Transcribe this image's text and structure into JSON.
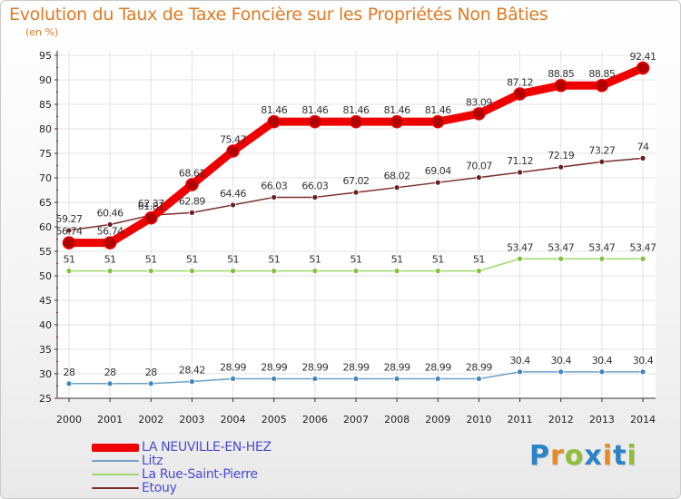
{
  "title": "Evolution du Taux de Taxe Foncière sur les Propriétés Non Bâties",
  "unit_label": "(en %)",
  "logo": {
    "letters": [
      "P",
      "r",
      "o",
      "x",
      "i",
      "t",
      "i"
    ],
    "colors": [
      "#2b84c6",
      "#e6892a",
      "#8fbf3a",
      "#2b84c6",
      "#e6892a",
      "#2b84c6",
      "#8fbf3a"
    ]
  },
  "chart_data": {
    "type": "line",
    "x": [
      "2000",
      "2001",
      "2002",
      "2003",
      "2004",
      "2005",
      "2006",
      "2007",
      "2008",
      "2009",
      "2010",
      "2011",
      "2012",
      "2013",
      "2014"
    ],
    "ylim": [
      25,
      95
    ],
    "yticks": [
      25,
      30,
      35,
      40,
      45,
      50,
      55,
      60,
      65,
      70,
      75,
      80,
      85,
      90,
      95
    ],
    "grid": true,
    "legend_position": "bottom-left",
    "series": [
      {
        "name": "LA NEUVILLE-EN-HEZ",
        "color": "#ee0000",
        "point_color": "#b00000",
        "values": [
          56.74,
          56.74,
          61.81,
          68.61,
          75.47,
          81.46,
          81.46,
          81.46,
          81.46,
          81.46,
          83.09,
          87.12,
          88.85,
          88.85,
          92.41
        ],
        "labels": [
          "56.74",
          "56.74",
          "61.81",
          "68.61",
          "75.47",
          "81.46",
          "81.46",
          "81.46",
          "81.46",
          "81.46",
          "83.09",
          "87.12",
          "88.85",
          "88.85",
          "92.41"
        ]
      },
      {
        "name": "Litz",
        "color": "#6fa0c8",
        "point_color": "#3f86c0",
        "values": [
          28,
          28,
          28,
          28.42,
          28.99,
          28.99,
          28.99,
          28.99,
          28.99,
          28.99,
          28.99,
          30.4,
          30.4,
          30.4,
          30.4
        ],
        "labels": [
          "28",
          "28",
          "28",
          "28.42",
          "28.99",
          "28.99",
          "28.99",
          "28.99",
          "28.99",
          "28.99",
          "28.99",
          "30.4",
          "30.4",
          "30.4",
          "30.4"
        ]
      },
      {
        "name": "La Rue-Saint-Pierre",
        "color": "#9fd86a",
        "point_color": "#7fc23c",
        "values": [
          51,
          51,
          51,
          51,
          51,
          51,
          51,
          51,
          51,
          51,
          51,
          53.47,
          53.47,
          53.47,
          53.47
        ],
        "labels": [
          "51",
          "51",
          "51",
          "51",
          "51",
          "51",
          "51",
          "51",
          "51",
          "51",
          "51",
          "53.47",
          "53.47",
          "53.47",
          "53.47"
        ]
      },
      {
        "name": "Etouy",
        "color": "#7a2e2e",
        "point_color": "#6a1f1f",
        "values": [
          59.27,
          60.46,
          62.37,
          62.89,
          64.46,
          66.03,
          66.03,
          67.02,
          68.02,
          69.04,
          70.07,
          71.12,
          72.19,
          73.27,
          74
        ],
        "labels": [
          "59.27",
          "60.46",
          "62.37",
          "62.89",
          "64.46",
          "66.03",
          "66.03",
          "67.02",
          "68.02",
          "69.04",
          "70.07",
          "71.12",
          "72.19",
          "73.27",
          "74"
        ]
      }
    ]
  }
}
